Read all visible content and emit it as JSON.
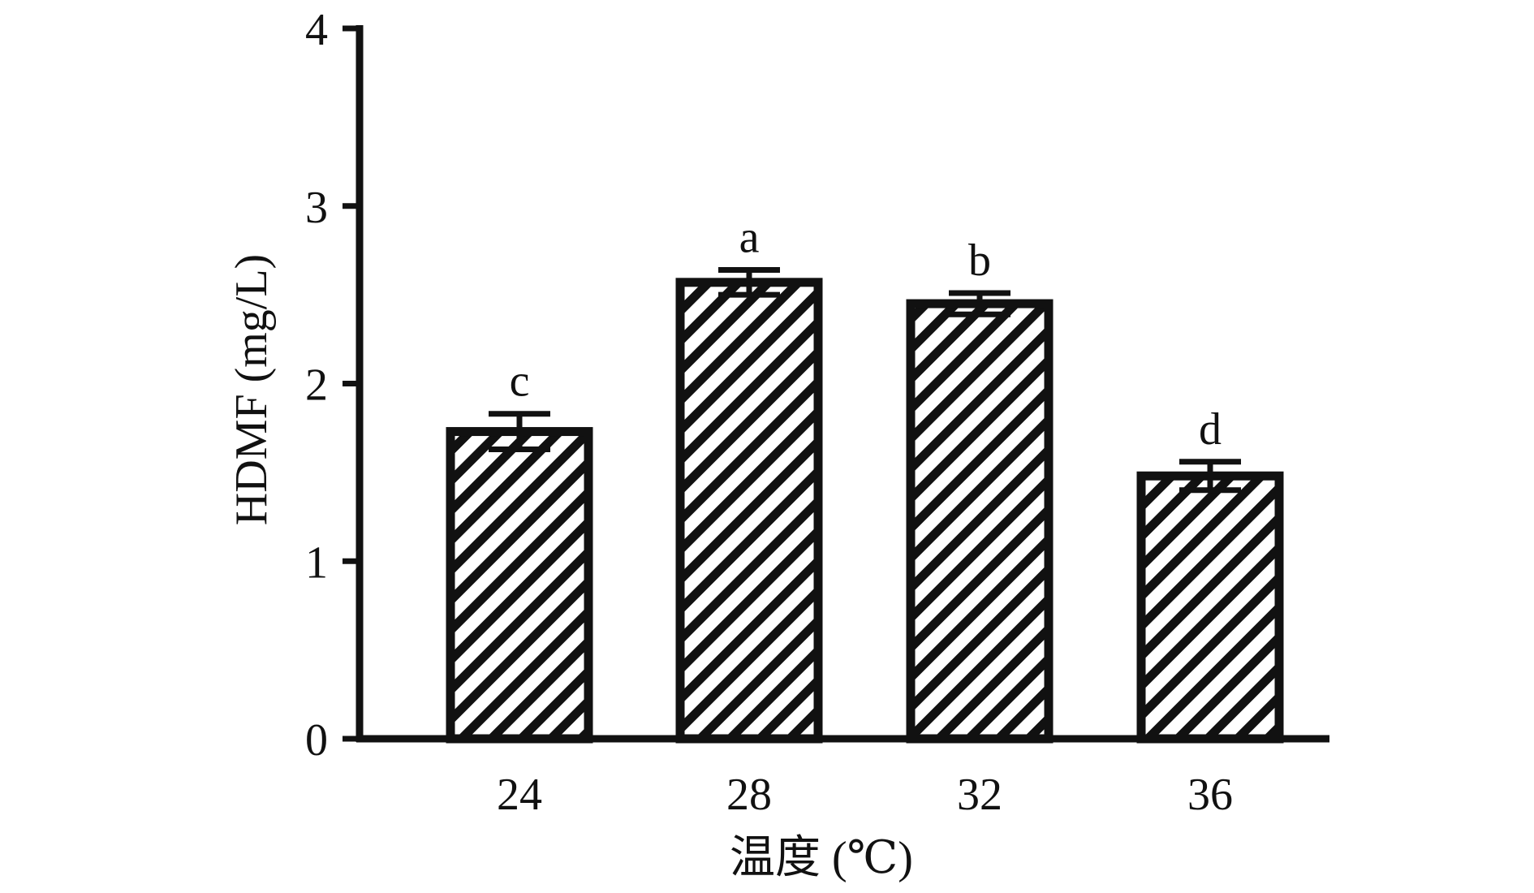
{
  "chart_data": {
    "type": "bar",
    "categories": [
      "24",
      "28",
      "32",
      "36"
    ],
    "values": [
      1.73,
      2.57,
      2.45,
      1.48
    ],
    "errors": [
      0.1,
      0.07,
      0.06,
      0.08
    ],
    "significance_letters": [
      "c",
      "a",
      "b",
      "d"
    ],
    "title": "",
    "xlabel": "温度 (℃)",
    "ylabel": "HDMF (mg/L)",
    "ylim": [
      0,
      4
    ],
    "yticks": [
      "0",
      "1",
      "2",
      "3",
      "4"
    ],
    "grid": false,
    "legend": "none",
    "bar_style": "diagonal-hatch",
    "colors": {
      "ink": "#111111",
      "fill": "#ffffff"
    }
  }
}
